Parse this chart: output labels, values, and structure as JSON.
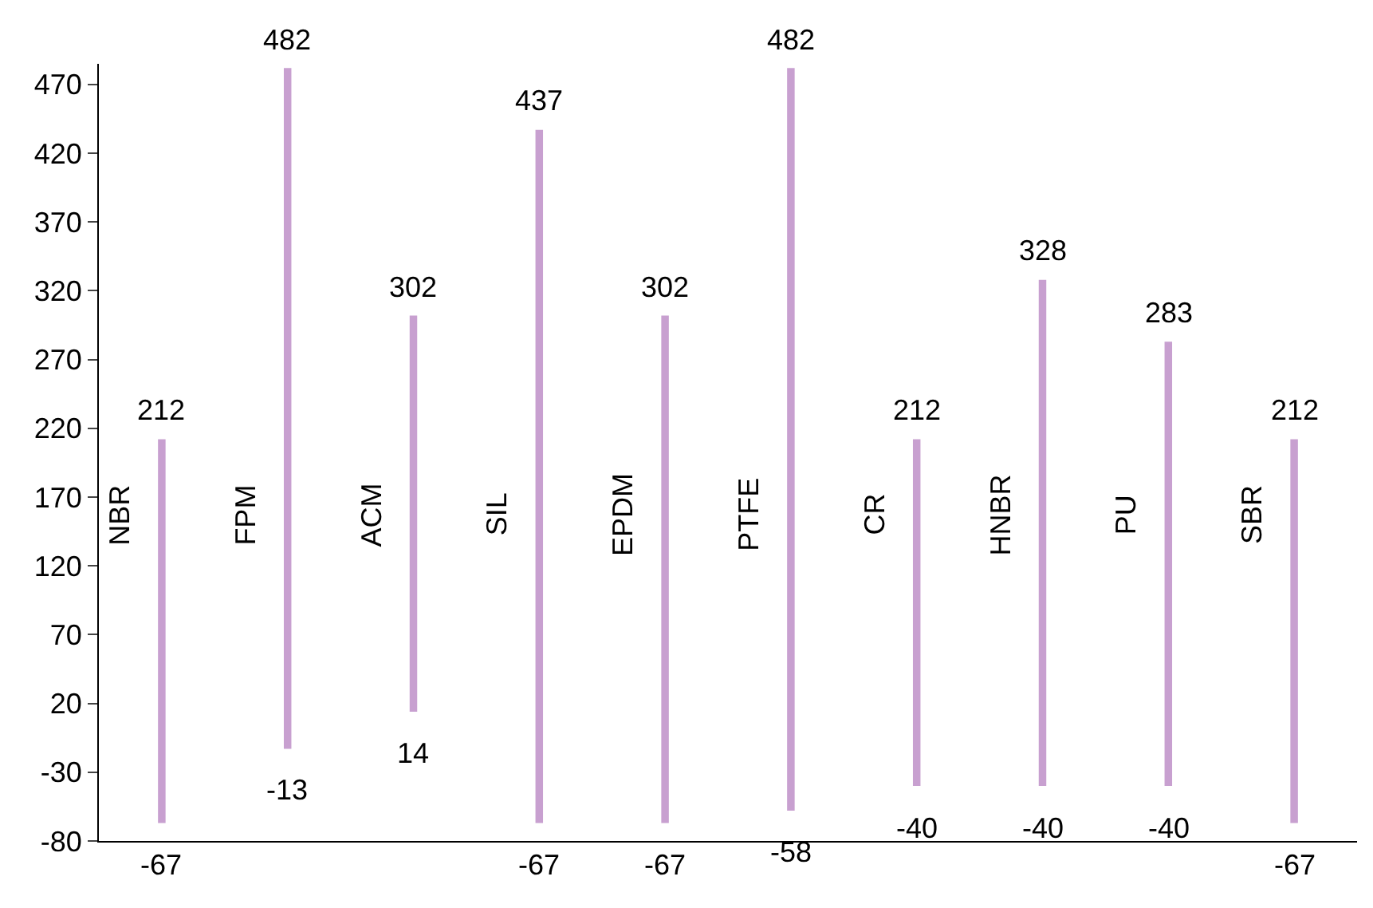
{
  "chart_data": {
    "type": "bar",
    "categories": [
      "NBR",
      "FPM",
      "ACM",
      "SIL",
      "EPDM",
      "PTFE",
      "CR",
      "HNBR",
      "PU",
      "SBR"
    ],
    "base": [
      -67,
      -13,
      14,
      -67,
      -67,
      -58,
      -40,
      -40,
      -40,
      -67
    ],
    "values": [
      279,
      495,
      288,
      504,
      369,
      540,
      252,
      368,
      323,
      279
    ],
    "color": "#c8a0d0",
    "ylim": [
      -80,
      485
    ],
    "yticks": [
      -80,
      -30,
      20,
      70,
      120,
      170,
      220,
      270,
      320,
      370,
      420,
      470
    ],
    "tick_labels": "y",
    "grid": false,
    "annotations": [
      "212",
      "-67",
      "482",
      "-13",
      "302",
      "14",
      "437",
      "-67",
      "302",
      "-67",
      "482",
      "-58",
      "212",
      "-40",
      "328",
      "-40",
      "283",
      "-40",
      "212",
      "-67"
    ]
  }
}
